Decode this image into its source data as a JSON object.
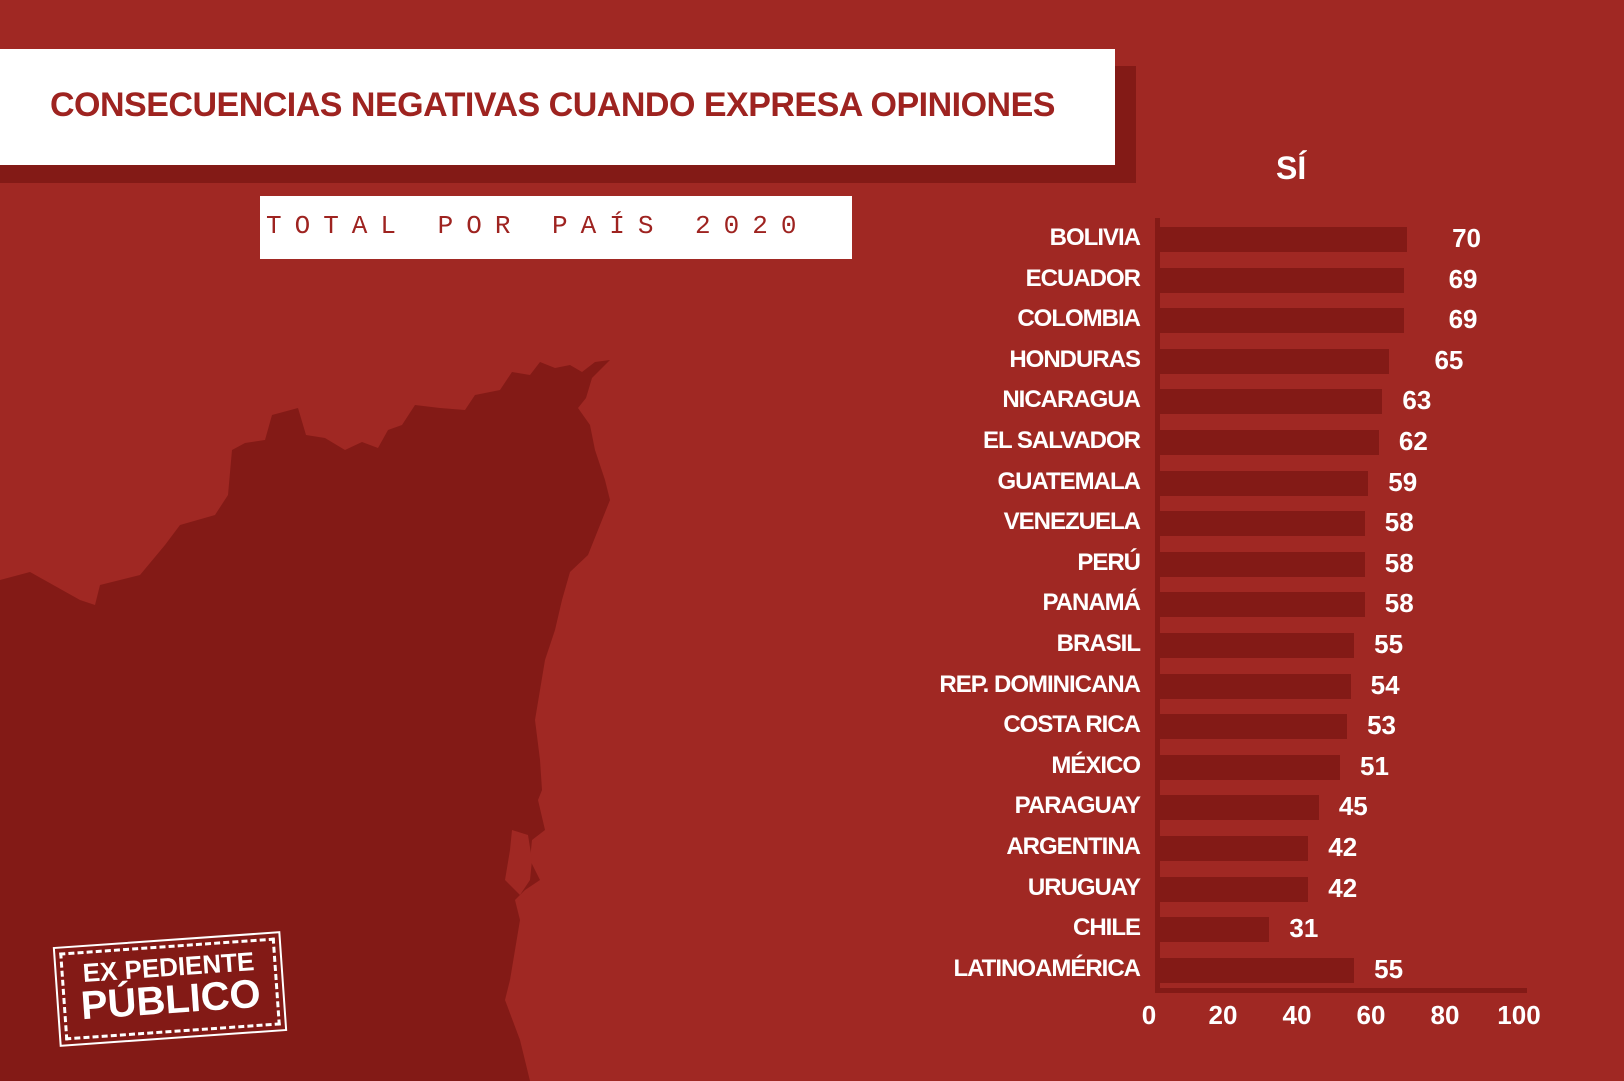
{
  "title": "CONSECUENCIAS NEGATIVAS CUANDO EXPRESA OPINIONES",
  "subtitle": "TOTAL POR PAÍS 2020",
  "logo": {
    "line1": "EX PEDIENTE",
    "line2": "PÚBLICO"
  },
  "colors": {
    "background": "#a02823",
    "bar": "#831a16",
    "title": "#9e2320"
  },
  "chart_data": {
    "type": "bar",
    "orientation": "horizontal",
    "series_label": "SÍ",
    "categories": [
      "BOLIVIA",
      "ECUADOR",
      "COLOMBIA",
      "HONDURAS",
      "NICARAGUA",
      "EL SALVADOR",
      "GUATEMALA",
      "VENEZUELA",
      "PERÚ",
      "PANAMÁ",
      "BRASIL",
      "REP. DOMINICANA",
      "COSTA RICA",
      "MÉXICO",
      "PARAGUAY",
      "ARGENTINA",
      "URUGUAY",
      "CHILE",
      "LATINOAMÉRICA"
    ],
    "values": [
      70,
      69,
      69,
      65,
      63,
      62,
      59,
      58,
      58,
      58,
      55,
      54,
      53,
      51,
      45,
      42,
      42,
      31,
      55
    ],
    "xticks": [
      0,
      20,
      40,
      60,
      80,
      100
    ],
    "xlim": [
      0,
      100
    ],
    "grid": false
  }
}
